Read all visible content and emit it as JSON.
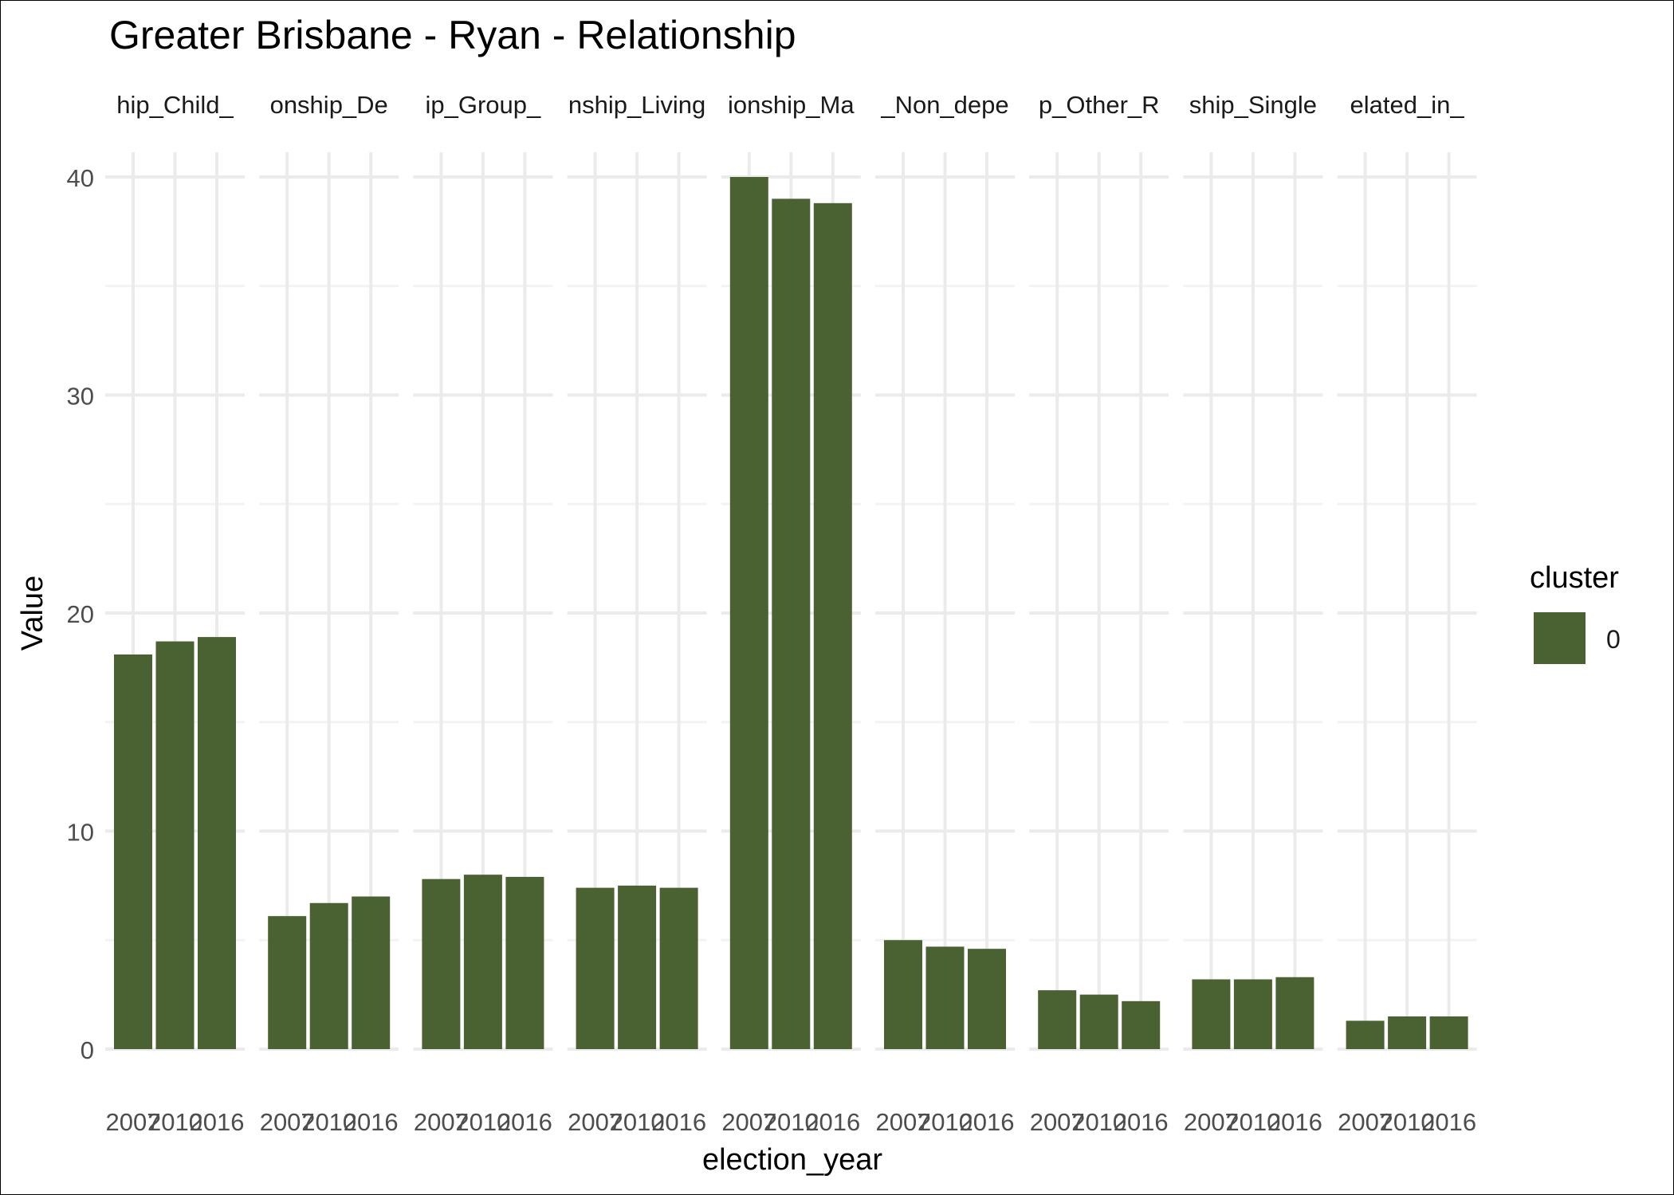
{
  "chart_data": {
    "type": "bar",
    "title": "Greater Brisbane - Ryan - Relationship",
    "xlabel": "election_year",
    "ylabel": "Value",
    "ylim": [
      0,
      41.5
    ],
    "y_ticks": [
      0,
      10,
      20,
      30,
      40
    ],
    "grid": true,
    "legend": {
      "title": "cluster",
      "placement": "right",
      "entries": [
        {
          "label": "0",
          "color": "#4a6132"
        }
      ]
    },
    "bar_color": "#4a6132",
    "x_ticks": [
      "2007",
      "2010",
      "2016"
    ],
    "facets": [
      {
        "label": "hip_Child_",
        "values": [
          18.1,
          18.7,
          18.9
        ]
      },
      {
        "label": "onship_De",
        "values": [
          6.1,
          6.7,
          7.0
        ]
      },
      {
        "label": "ip_Group_",
        "values": [
          7.8,
          8.0,
          7.9
        ]
      },
      {
        "label": "nship_Living",
        "values": [
          7.4,
          7.5,
          7.4
        ]
      },
      {
        "label": "ionship_Ma",
        "values": [
          40.0,
          39.0,
          38.8
        ]
      },
      {
        "label": "_Non_depe",
        "values": [
          5.0,
          4.7,
          4.6
        ]
      },
      {
        "label": "p_Other_R",
        "values": [
          2.7,
          2.5,
          2.2
        ]
      },
      {
        "label": "ship_Single",
        "values": [
          3.2,
          3.2,
          3.3
        ]
      },
      {
        "label": "elated_in_",
        "values": [
          1.3,
          1.5,
          1.5
        ]
      }
    ]
  }
}
